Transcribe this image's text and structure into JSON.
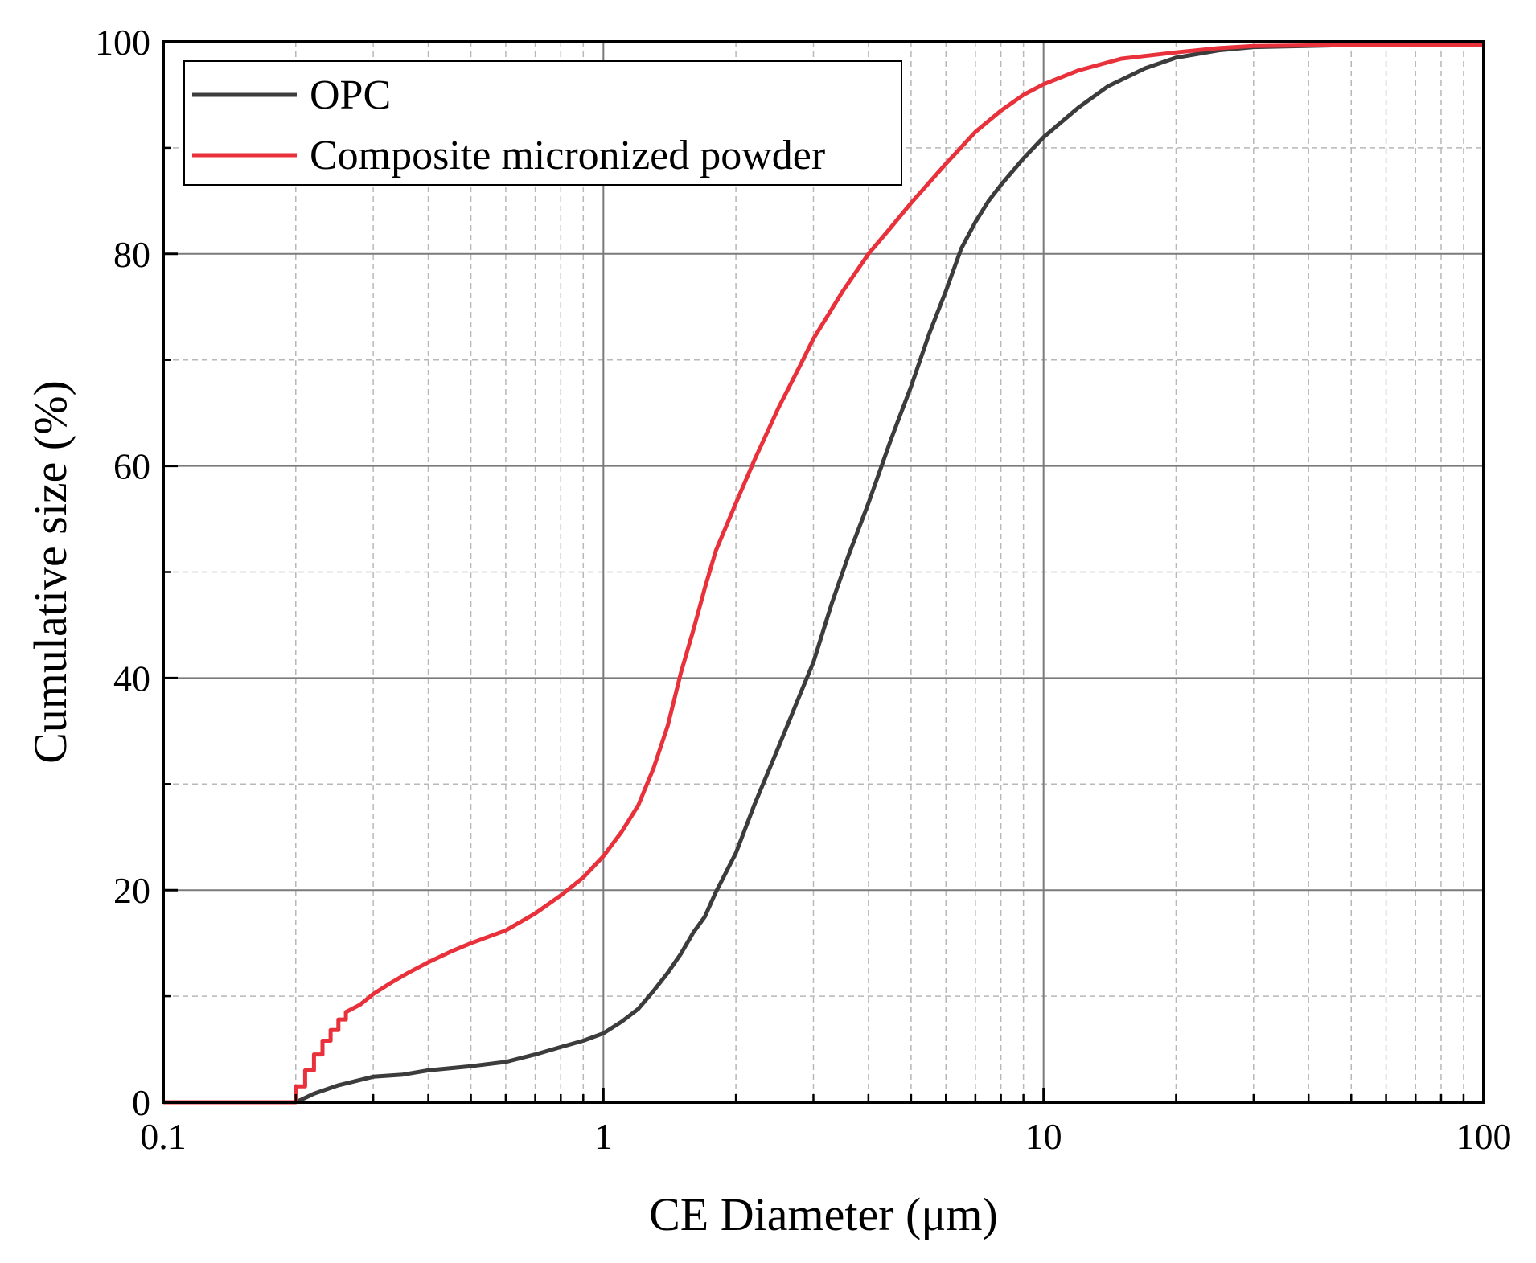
{
  "chart_data": {
    "type": "line",
    "x_scale": "log",
    "xlabel": "CE Diameter (μm)",
    "ylabel": "Cumulative size (%)",
    "xlim": [
      0.1,
      100
    ],
    "ylim": [
      0,
      100
    ],
    "x_ticks": [
      0.1,
      1,
      10,
      100
    ],
    "x_tick_labels": [
      "0.1",
      "1",
      "10",
      "100"
    ],
    "y_ticks": [
      0,
      20,
      40,
      60,
      80,
      100
    ],
    "y_tick_labels": [
      "0",
      "20",
      "40",
      "60",
      "80",
      "100"
    ],
    "grid": true,
    "legend_position": "top-left",
    "series": [
      {
        "name": "OPC",
        "color": "#3c3c3c",
        "points": [
          [
            0.2,
            0
          ],
          [
            0.22,
            0.8
          ],
          [
            0.25,
            1.6
          ],
          [
            0.3,
            2.4
          ],
          [
            0.35,
            2.6
          ],
          [
            0.4,
            3.0
          ],
          [
            0.5,
            3.4
          ],
          [
            0.6,
            3.8
          ],
          [
            0.7,
            4.5
          ],
          [
            0.8,
            5.2
          ],
          [
            0.9,
            5.8
          ],
          [
            1.0,
            6.5
          ],
          [
            1.1,
            7.6
          ],
          [
            1.2,
            8.8
          ],
          [
            1.3,
            10.5
          ],
          [
            1.4,
            12.2
          ],
          [
            1.5,
            14.0
          ],
          [
            1.6,
            16.0
          ],
          [
            1.7,
            17.5
          ],
          [
            1.8,
            19.8
          ],
          [
            2.0,
            23.5
          ],
          [
            2.2,
            28.0
          ],
          [
            2.5,
            33.5
          ],
          [
            2.8,
            38.5
          ],
          [
            3.0,
            41.5
          ],
          [
            3.3,
            47.0
          ],
          [
            3.6,
            51.5
          ],
          [
            4.0,
            56.5
          ],
          [
            4.5,
            62.5
          ],
          [
            5.0,
            67.5
          ],
          [
            5.5,
            72.5
          ],
          [
            6.0,
            76.5
          ],
          [
            6.5,
            80.5
          ],
          [
            7.0,
            83.0
          ],
          [
            7.5,
            85.0
          ],
          [
            8.0,
            86.5
          ],
          [
            9.0,
            89.0
          ],
          [
            10.0,
            91.0
          ],
          [
            12.0,
            93.8
          ],
          [
            14.0,
            95.8
          ],
          [
            17.0,
            97.5
          ],
          [
            20.0,
            98.5
          ],
          [
            25.0,
            99.2
          ],
          [
            30.0,
            99.5
          ],
          [
            50.0,
            99.7
          ],
          [
            100.0,
            99.7
          ]
        ]
      },
      {
        "name": "Composite micronized powder",
        "color": "#e8313a",
        "points": [
          [
            0.1,
            0
          ],
          [
            0.2,
            0
          ],
          [
            0.2,
            1.5
          ],
          [
            0.21,
            1.5
          ],
          [
            0.21,
            3.0
          ],
          [
            0.22,
            3.0
          ],
          [
            0.22,
            4.5
          ],
          [
            0.23,
            4.5
          ],
          [
            0.23,
            5.8
          ],
          [
            0.24,
            5.8
          ],
          [
            0.24,
            6.8
          ],
          [
            0.25,
            6.8
          ],
          [
            0.25,
            7.8
          ],
          [
            0.26,
            7.8
          ],
          [
            0.26,
            8.5
          ],
          [
            0.28,
            9.2
          ],
          [
            0.3,
            10.2
          ],
          [
            0.33,
            11.3
          ],
          [
            0.36,
            12.2
          ],
          [
            0.4,
            13.2
          ],
          [
            0.45,
            14.2
          ],
          [
            0.5,
            15.0
          ],
          [
            0.6,
            16.2
          ],
          [
            0.7,
            17.8
          ],
          [
            0.8,
            19.5
          ],
          [
            0.9,
            21.2
          ],
          [
            1.0,
            23.2
          ],
          [
            1.1,
            25.5
          ],
          [
            1.2,
            28.0
          ],
          [
            1.3,
            31.5
          ],
          [
            1.4,
            35.5
          ],
          [
            1.5,
            40.5
          ],
          [
            1.6,
            44.5
          ],
          [
            1.7,
            48.5
          ],
          [
            1.8,
            52.0
          ],
          [
            2.0,
            56.5
          ],
          [
            2.2,
            60.5
          ],
          [
            2.5,
            65.5
          ],
          [
            2.8,
            69.5
          ],
          [
            3.0,
            72.0
          ],
          [
            3.5,
            76.5
          ],
          [
            4.0,
            80.0
          ],
          [
            4.5,
            82.5
          ],
          [
            5.0,
            84.8
          ],
          [
            6.0,
            88.5
          ],
          [
            7.0,
            91.5
          ],
          [
            8.0,
            93.5
          ],
          [
            9.0,
            95.0
          ],
          [
            10.0,
            96.0
          ],
          [
            12.0,
            97.3
          ],
          [
            15.0,
            98.4
          ],
          [
            20.0,
            99.0
          ],
          [
            25.0,
            99.4
          ],
          [
            30.0,
            99.6
          ],
          [
            50.0,
            99.7
          ],
          [
            100.0,
            99.7
          ]
        ]
      }
    ]
  }
}
